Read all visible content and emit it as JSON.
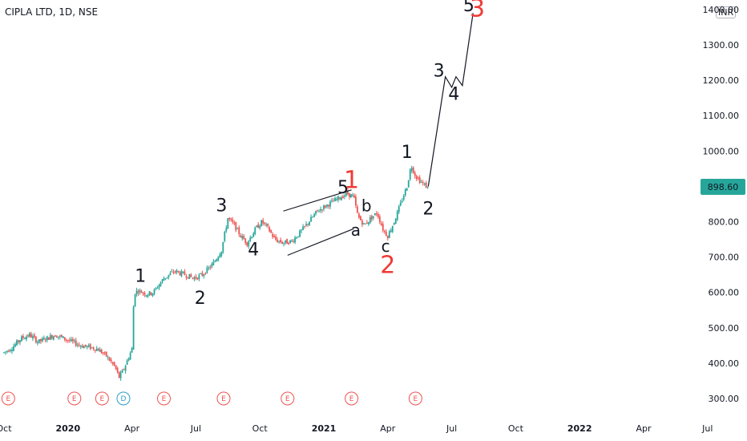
{
  "header": {
    "symbol": "CIPLA LTD, 1D, NSE",
    "currency": "INR"
  },
  "price_tag": "898.60",
  "colors": {
    "up": "#26a69a",
    "down": "#ef5350",
    "price_tag_bg": "#26a69a",
    "event": "#ef5350",
    "dividend": "#2aa0c8",
    "text": "#131722",
    "red_label": "#ef3b36"
  },
  "chart_data": {
    "type": "candlestick",
    "title": "CIPLA LTD, 1D, NSE",
    "y_ticks": [
      "300.00",
      "400.00",
      "500.00",
      "600.00",
      "700.00",
      "800.00",
      "900.00",
      "1000.00",
      "1100.00",
      "1200.00",
      "1300.00",
      "1400.00"
    ],
    "ylim": [
      270,
      1430
    ],
    "x_ticks": [
      {
        "label": "Oct",
        "month_index": -3,
        "bold": false
      },
      {
        "label": "2020",
        "month_index": 0,
        "bold": true
      },
      {
        "label": "Apr",
        "month_index": 3,
        "bold": false
      },
      {
        "label": "Jul",
        "month_index": 6,
        "bold": false
      },
      {
        "label": "Oct",
        "month_index": 9,
        "bold": false
      },
      {
        "label": "2021",
        "month_index": 12,
        "bold": true
      },
      {
        "label": "Apr",
        "month_index": 15,
        "bold": false
      },
      {
        "label": "Jul",
        "month_index": 18,
        "bold": false
      },
      {
        "label": "Oct",
        "month_index": 21,
        "bold": false
      },
      {
        "label": "2022",
        "month_index": 24,
        "bold": true
      },
      {
        "label": "Apr",
        "month_index": 27,
        "bold": false
      },
      {
        "label": "Jul",
        "month_index": 30,
        "bold": false
      }
    ],
    "last_price": 898.6,
    "price_path": [
      [
        -3.0,
        430
      ],
      [
        -2.6,
        445
      ],
      [
        -2.2,
        470
      ],
      [
        -1.8,
        480
      ],
      [
        -1.4,
        460
      ],
      [
        -1.0,
        470
      ],
      [
        -0.6,
        480
      ],
      [
        -0.2,
        470
      ],
      [
        0.2,
        460
      ],
      [
        0.6,
        450
      ],
      [
        1.0,
        445
      ],
      [
        1.4,
        440
      ],
      [
        1.8,
        420
      ],
      [
        2.2,
        390
      ],
      [
        2.4,
        360
      ],
      [
        2.6,
        380
      ],
      [
        2.8,
        410
      ],
      [
        3.0,
        440
      ],
      [
        3.1,
        600
      ],
      [
        3.3,
        605
      ],
      [
        3.7,
        595
      ],
      [
        4.0,
        600
      ],
      [
        4.5,
        640
      ],
      [
        5.0,
        660
      ],
      [
        5.5,
        650
      ],
      [
        5.9,
        640
      ],
      [
        6.3,
        650
      ],
      [
        6.8,
        680
      ],
      [
        7.2,
        720
      ],
      [
        7.5,
        810
      ],
      [
        7.8,
        790
      ],
      [
        8.1,
        760
      ],
      [
        8.4,
        740
      ],
      [
        8.8,
        780
      ],
      [
        9.1,
        800
      ],
      [
        9.4,
        780
      ],
      [
        9.7,
        750
      ],
      [
        10.1,
        740
      ],
      [
        10.5,
        745
      ],
      [
        10.9,
        770
      ],
      [
        11.3,
        800
      ],
      [
        11.7,
        830
      ],
      [
        12.1,
        845
      ],
      [
        12.5,
        860
      ],
      [
        12.8,
        870
      ],
      [
        13.1,
        880
      ],
      [
        13.4,
        870
      ],
      [
        13.6,
        815
      ],
      [
        13.9,
        790
      ],
      [
        14.2,
        810
      ],
      [
        14.5,
        825
      ],
      [
        14.8,
        775
      ],
      [
        15.0,
        760
      ],
      [
        15.3,
        800
      ],
      [
        15.6,
        850
      ],
      [
        15.9,
        900
      ],
      [
        16.1,
        960
      ],
      [
        16.3,
        930
      ],
      [
        16.6,
        910
      ],
      [
        16.9,
        895
      ]
    ],
    "projection_path": [
      [
        16.9,
        900
      ],
      [
        17.7,
        1210
      ],
      [
        18.0,
        1180
      ],
      [
        18.2,
        1210
      ],
      [
        18.5,
        1185
      ],
      [
        19.0,
        1390
      ]
    ],
    "trendlines": [
      [
        [
          10.1,
          830
        ],
        [
          13.3,
          890
        ]
      ],
      [
        [
          10.3,
          705
        ],
        [
          13.4,
          780
        ]
      ]
    ],
    "wave_labels": [
      {
        "text": "1",
        "m": 3.4,
        "p": 630,
        "color": "black",
        "size": 22
      },
      {
        "text": "2",
        "m": 6.2,
        "p": 568,
        "color": "black",
        "size": 22
      },
      {
        "text": "3",
        "m": 7.2,
        "p": 830,
        "color": "black",
        "size": 22
      },
      {
        "text": "4",
        "m": 8.7,
        "p": 705,
        "color": "black",
        "size": 22
      },
      {
        "text": "5",
        "m": 12.9,
        "p": 880,
        "color": "black",
        "size": 22
      },
      {
        "text": "1",
        "m": 13.3,
        "p": 895,
        "color": "red",
        "size": 30
      },
      {
        "text": "a",
        "m": 13.5,
        "p": 760,
        "color": "black",
        "size": 20
      },
      {
        "text": "b",
        "m": 14.0,
        "p": 830,
        "color": "black",
        "size": 20
      },
      {
        "text": "c",
        "m": 14.9,
        "p": 715,
        "color": "black",
        "size": 20
      },
      {
        "text": "2",
        "m": 15.0,
        "p": 655,
        "color": "red",
        "size": 30
      },
      {
        "text": "1",
        "m": 15.9,
        "p": 980,
        "color": "black",
        "size": 22
      },
      {
        "text": "2",
        "m": 16.9,
        "p": 820,
        "color": "black",
        "size": 22
      },
      {
        "text": "3",
        "m": 17.4,
        "p": 1210,
        "color": "black",
        "size": 22
      },
      {
        "text": "4",
        "m": 18.1,
        "p": 1145,
        "color": "black",
        "size": 22
      },
      {
        "text": "5",
        "m": 18.8,
        "p": 1395,
        "color": "black",
        "size": 22
      },
      {
        "text": "3",
        "m": 19.2,
        "p": 1380,
        "color": "red",
        "size": 30
      }
    ],
    "events": [
      {
        "letter": "E",
        "m": -2.8,
        "type": "earnings"
      },
      {
        "letter": "E",
        "m": 0.3,
        "type": "earnings"
      },
      {
        "letter": "E",
        "m": 1.6,
        "type": "earnings"
      },
      {
        "letter": "D",
        "m": 2.6,
        "type": "dividend"
      },
      {
        "letter": "E",
        "m": 4.5,
        "type": "earnings"
      },
      {
        "letter": "E",
        "m": 7.3,
        "type": "earnings"
      },
      {
        "letter": "E",
        "m": 10.3,
        "type": "earnings"
      },
      {
        "letter": "E",
        "m": 13.3,
        "type": "earnings"
      },
      {
        "letter": "E",
        "m": 16.3,
        "type": "earnings"
      }
    ]
  }
}
